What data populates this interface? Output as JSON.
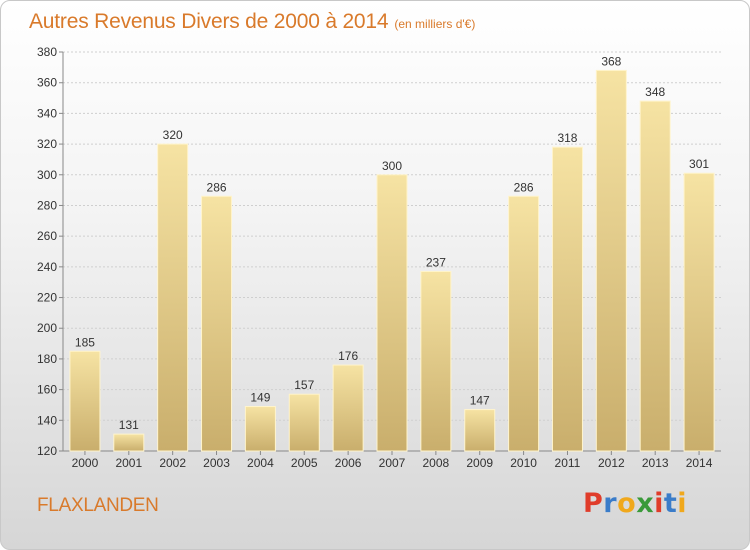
{
  "page": {
    "title": "Autres Revenus Divers de 2000 à 2014",
    "subtitle": "(en milliers d'€)",
    "town": "FLAXLANDEN",
    "brand": "Proxiti"
  },
  "colors": {
    "title": "#d97a2b",
    "bar_light": "#f6e3a3",
    "bar_dark": "#c9ae6c",
    "grid": "#cfcfcf",
    "brand_letters": [
      "#e03c2a",
      "#3a7cc9",
      "#f0a81c",
      "#3a9a3a",
      "#e03c2a",
      "#3a7cc9",
      "#f0a81c"
    ]
  },
  "chart_data": {
    "type": "bar",
    "categories": [
      "2000",
      "2001",
      "2002",
      "2003",
      "2004",
      "2005",
      "2006",
      "2007",
      "2008",
      "2009",
      "2010",
      "2011",
      "2012",
      "2013",
      "2014"
    ],
    "values": [
      185,
      131,
      320,
      286,
      149,
      157,
      176,
      300,
      237,
      147,
      286,
      318,
      368,
      348,
      301
    ],
    "title": "Autres Revenus Divers de 2000 à 2014",
    "subtitle": "(en milliers d'€)",
    "ylim": [
      120,
      380
    ],
    "yticks": [
      120,
      140,
      160,
      180,
      200,
      220,
      240,
      260,
      280,
      300,
      320,
      340,
      360,
      380
    ],
    "grid": true,
    "data_labels": true
  }
}
